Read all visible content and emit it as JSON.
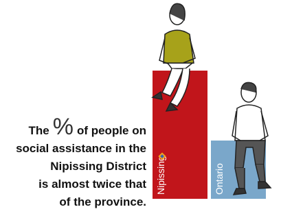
{
  "chart_data": {
    "type": "bar",
    "categories": [
      "Nipissing",
      "Ontario"
    ],
    "values": [
      187,
      85
    ],
    "colors": [
      "#c1151b",
      "#7aa7ca"
    ],
    "ylim": [
      0,
      200
    ],
    "annotation": {
      "lead": "The",
      "symbol": "%",
      "rest": "of people on",
      "lines": [
        "social assistance in the",
        "Nipissing District",
        "is almost twice that",
        "of the province."
      ]
    }
  }
}
